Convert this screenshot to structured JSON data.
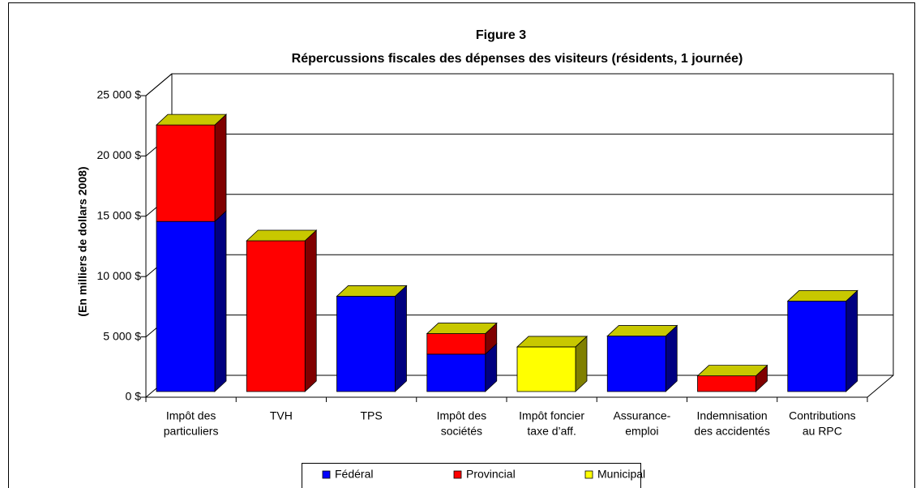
{
  "chart_data": {
    "type": "bar3d_stacked",
    "title": "Figure 3",
    "subtitle": "Répercussions fiscales des dépenses des visiteurs (résidents, 1 journée)",
    "y_label": "(En milliers de dollars 2008)",
    "categories": [
      [
        "Impôt des",
        "particuliers"
      ],
      [
        "TVH"
      ],
      [
        "TPS"
      ],
      [
        "Impôt des",
        "sociétés"
      ],
      [
        "Impôt foncier",
        "taxe d’aff."
      ],
      [
        "Assurance-",
        "emploi"
      ],
      [
        "Indemnisation",
        "des accidentés"
      ],
      [
        "Contributions",
        "au RPC"
      ]
    ],
    "series": [
      {
        "name": "Fédéral",
        "color": "#0000ff",
        "side": "#000080",
        "values": [
          14100,
          0,
          7900,
          3100,
          0,
          4600,
          0,
          7500
        ]
      },
      {
        "name": "Provincial",
        "color": "#ff0000",
        "side": "#800000",
        "values": [
          8000,
          12500,
          0,
          1700,
          0,
          0,
          1300,
          0
        ]
      },
      {
        "name": "Municipal",
        "color": "#ffff00",
        "side": "#808000",
        "values": [
          0,
          0,
          0,
          0,
          3700,
          0,
          0,
          0
        ]
      }
    ],
    "ylim": [
      0,
      25000
    ],
    "yticks": [
      {
        "value": 0,
        "label": "0 $"
      },
      {
        "value": 5000,
        "label": "5 000 $"
      },
      {
        "value": 10000,
        "label": "10 000 $"
      },
      {
        "value": 15000,
        "label": "15 000 $"
      },
      {
        "value": 20000,
        "label": "20 000 $"
      },
      {
        "value": 25000,
        "label": "25 000 $"
      }
    ],
    "grid": true,
    "legend": "bottom"
  }
}
